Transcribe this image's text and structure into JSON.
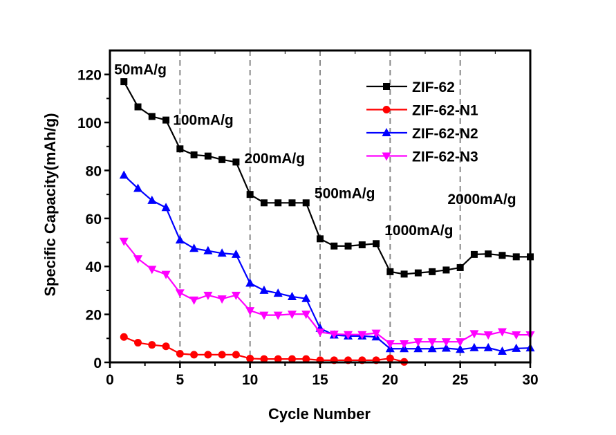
{
  "chart_data": {
    "type": "line",
    "title": "",
    "xlabel": "Cycle Number",
    "ylabel": "Specific Capacity(mAh/g)",
    "xlim": [
      0,
      30
    ],
    "ylim": [
      0,
      130
    ],
    "xticks": [
      0,
      5,
      10,
      15,
      20,
      25,
      30
    ],
    "yticks": [
      0,
      20,
      40,
      60,
      80,
      100,
      120
    ],
    "grid": false,
    "vlines_dashed": [
      5,
      10,
      15,
      20,
      25
    ],
    "legend_position": "top-right",
    "annotations": [
      {
        "text": "50mA/g",
        "x": 0.3,
        "y": 120
      },
      {
        "text": "100mA/g",
        "x": 4.5,
        "y": 99
      },
      {
        "text": "200mA/g",
        "x": 9.6,
        "y": 83
      },
      {
        "text": "500mA/g",
        "x": 14.6,
        "y": 68.5
      },
      {
        "text": "1000mA/g",
        "x": 19.6,
        "y": 53
      },
      {
        "text": "2000mA/g",
        "x": 24.1,
        "y": 66
      }
    ],
    "series": [
      {
        "name": "ZIF-62",
        "color": "#000000",
        "marker": "square",
        "x": [
          1,
          2,
          3,
          4,
          5,
          6,
          7,
          8,
          9,
          10,
          11,
          12,
          13,
          14,
          15,
          16,
          17,
          18,
          19,
          20,
          21,
          22,
          23,
          24,
          25,
          26,
          27,
          28,
          29,
          30
        ],
        "y": [
          117,
          106.5,
          102.5,
          101,
          89,
          86.5,
          86,
          84.5,
          83.5,
          70,
          66.5,
          66.5,
          66.5,
          66.5,
          51.5,
          48.5,
          48.5,
          49,
          49.5,
          37.8,
          36.8,
          37.3,
          37.8,
          38.5,
          39.5,
          45,
          45.2,
          44.6,
          44,
          44
        ]
      },
      {
        "name": "ZIF-62-N1",
        "color": "#ff0000",
        "marker": "circle",
        "x": [
          1,
          2,
          3,
          4,
          5,
          6,
          7,
          8,
          9,
          10,
          11,
          12,
          13,
          14,
          15,
          16,
          17,
          18,
          19,
          20,
          21
        ],
        "y": [
          10.6,
          8.2,
          7.3,
          6.7,
          3.6,
          3.2,
          3.2,
          3.2,
          3.2,
          1.6,
          1.4,
          1.4,
          1.4,
          1.4,
          0.9,
          0.9,
          0.9,
          0.9,
          0.9,
          1.7,
          0.2
        ]
      },
      {
        "name": "ZIF-62-N2",
        "color": "#0000ff",
        "marker": "triangle-up",
        "x": [
          1,
          2,
          3,
          4,
          5,
          6,
          7,
          8,
          9,
          10,
          11,
          12,
          13,
          14,
          15,
          16,
          17,
          18,
          19,
          20,
          21,
          22,
          23,
          24,
          25,
          26,
          27,
          28,
          29,
          30
        ],
        "y": [
          78,
          72.5,
          67.5,
          64.5,
          51,
          47.5,
          46.5,
          45.5,
          45,
          33,
          30,
          28.8,
          27.4,
          26.6,
          14.2,
          11.4,
          11,
          11,
          10.6,
          5.7,
          5.7,
          5.7,
          5.7,
          5.9,
          5.4,
          6.1,
          6.1,
          4.6,
          5.8,
          6
        ]
      },
      {
        "name": "ZIF-62-N3",
        "color": "#ff00ff",
        "marker": "triangle-down",
        "x": [
          1,
          2,
          3,
          4,
          5,
          6,
          7,
          8,
          9,
          10,
          11,
          12,
          13,
          14,
          15,
          16,
          17,
          18,
          19,
          20,
          21,
          22,
          23,
          24,
          25,
          26,
          27,
          28,
          29,
          30
        ],
        "y": [
          50.5,
          43.2,
          38.8,
          36.7,
          29,
          26,
          28,
          26.5,
          28,
          21.6,
          19.7,
          19.7,
          20.1,
          20.1,
          12.6,
          11.8,
          11.6,
          11.6,
          12.2,
          7.8,
          7.8,
          8.6,
          8.6,
          8.6,
          8.6,
          12,
          11.5,
          12.8,
          11.5,
          11.5
        ]
      }
    ]
  }
}
